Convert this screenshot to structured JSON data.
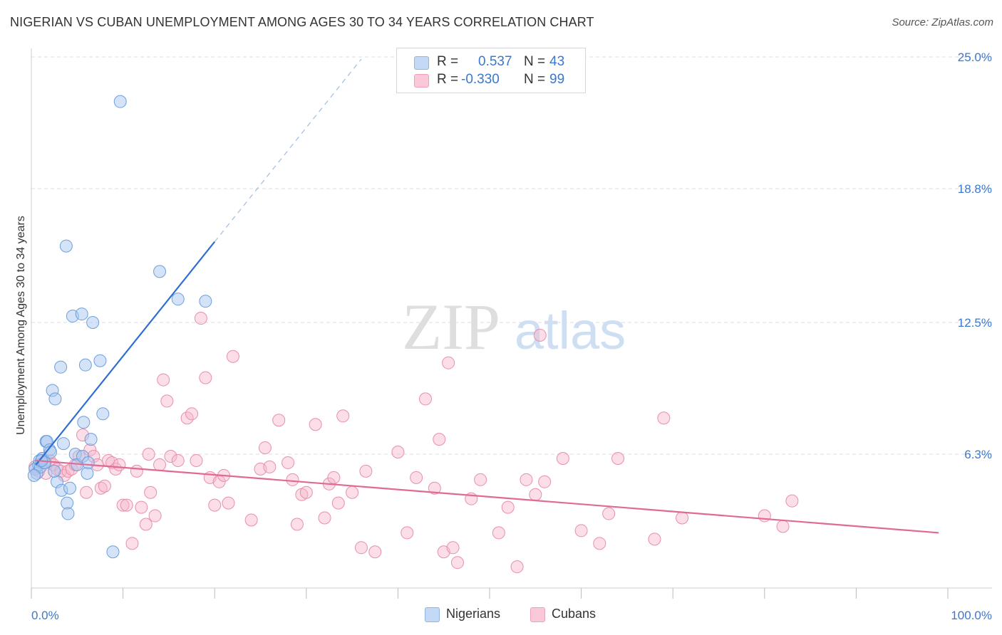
{
  "header": {
    "title": "NIGERIAN VS CUBAN UNEMPLOYMENT AMONG AGES 30 TO 34 YEARS CORRELATION CHART",
    "source": "Source: ZipAtlas.com"
  },
  "watermark": {
    "zip": "ZIP",
    "atlas": "atlas"
  },
  "legend": {
    "rows": [
      {
        "r_label": "R =",
        "r_value": "0.537",
        "n_label": "N =",
        "n_value": "43",
        "color": "#a9c8f0"
      },
      {
        "r_label": "R =",
        "r_value": "-0.330",
        "n_label": "N =",
        "n_value": "99",
        "color": "#f6b6ca"
      }
    ]
  },
  "bottom_legend": {
    "nigerians": "Nigerians",
    "cubans": "Cubans"
  },
  "colors": {
    "nigerian_fill": "#a9c8f0",
    "nigerian_stroke": "#6d9fdc",
    "nigerian_line": "#2f6fd0",
    "cuban_fill": "#f6b6ca",
    "cuban_stroke": "#e88fab",
    "cuban_line": "#e06a95",
    "axis_text": "#3a78d0",
    "grid": "#dcdcdc"
  },
  "chart_data": {
    "type": "scatter",
    "title": "NIGERIAN VS CUBAN UNEMPLOYMENT AMONG AGES 30 TO 34 YEARS CORRELATION CHART",
    "xlabel": "",
    "ylabel": "Unemployment Among Ages 30 to 34 years",
    "xlim": [
      0,
      100
    ],
    "ylim": [
      0,
      25.0
    ],
    "x_tick_labels": [
      "0.0%",
      "100.0%"
    ],
    "y_ticks": [
      6.3,
      12.5,
      18.8,
      25.0
    ],
    "y_tick_labels": [
      "6.3%",
      "12.5%",
      "18.8%",
      "25.0%"
    ],
    "grid": true,
    "series": [
      {
        "name": "Nigerians",
        "r": 0.537,
        "n": 43,
        "trend": {
          "x0": 0.5,
          "y0": 5.8,
          "x1": 20,
          "y1": 16.3,
          "dashed_to_x": 36,
          "dashed_to_y": 24.9
        },
        "points": [
          [
            0.4,
            5.6
          ],
          [
            0.6,
            5.4
          ],
          [
            0.8,
            5.8
          ],
          [
            0.9,
            6.0
          ],
          [
            1.0,
            5.7
          ],
          [
            1.2,
            6.1
          ],
          [
            1.4,
            5.9
          ],
          [
            1.5,
            5.9
          ],
          [
            1.6,
            6.9
          ],
          [
            1.7,
            6.9
          ],
          [
            2.0,
            6.5
          ],
          [
            2.1,
            6.4
          ],
          [
            2.3,
            9.3
          ],
          [
            2.6,
            8.9
          ],
          [
            2.8,
            5.0
          ],
          [
            3.2,
            10.4
          ],
          [
            3.3,
            4.6
          ],
          [
            3.5,
            6.8
          ],
          [
            3.8,
            16.1
          ],
          [
            3.9,
            4.0
          ],
          [
            4.0,
            3.5
          ],
          [
            4.2,
            4.7
          ],
          [
            4.5,
            12.8
          ],
          [
            4.8,
            6.3
          ],
          [
            5.0,
            5.8
          ],
          [
            5.5,
            12.9
          ],
          [
            5.6,
            6.2
          ],
          [
            5.7,
            7.8
          ],
          [
            5.9,
            10.5
          ],
          [
            6.1,
            5.4
          ],
          [
            6.2,
            5.9
          ],
          [
            6.5,
            7.0
          ],
          [
            6.7,
            12.5
          ],
          [
            7.5,
            10.7
          ],
          [
            7.8,
            8.2
          ],
          [
            8.9,
            1.7
          ],
          [
            9.7,
            22.9
          ],
          [
            14.0,
            14.9
          ],
          [
            16.0,
            13.6
          ],
          [
            19.0,
            13.5
          ],
          [
            0.3,
            5.3
          ],
          [
            1.1,
            6.0
          ],
          [
            2.5,
            5.5
          ]
        ]
      },
      {
        "name": "Cubans",
        "r": -0.33,
        "n": 99,
        "trend": {
          "x0": 0.5,
          "y0": 6.0,
          "x1": 99,
          "y1": 2.6
        },
        "points": [
          [
            0.4,
            5.7
          ],
          [
            0.8,
            5.5
          ],
          [
            1.2,
            6.1
          ],
          [
            1.6,
            5.4
          ],
          [
            2.0,
            6.0
          ],
          [
            2.4,
            5.8
          ],
          [
            2.8,
            5.6
          ],
          [
            3.2,
            5.5
          ],
          [
            3.6,
            5.3
          ],
          [
            4.0,
            5.5
          ],
          [
            4.4,
            5.6
          ],
          [
            4.8,
            5.8
          ],
          [
            5.2,
            6.2
          ],
          [
            5.6,
            7.2
          ],
          [
            6.0,
            4.5
          ],
          [
            6.4,
            6.5
          ],
          [
            6.8,
            6.2
          ],
          [
            7.2,
            5.8
          ],
          [
            7.6,
            4.7
          ],
          [
            8.0,
            4.8
          ],
          [
            8.4,
            6.0
          ],
          [
            8.8,
            5.9
          ],
          [
            9.2,
            5.6
          ],
          [
            9.6,
            5.8
          ],
          [
            10.0,
            3.9
          ],
          [
            10.4,
            3.9
          ],
          [
            11.0,
            2.1
          ],
          [
            11.5,
            5.5
          ],
          [
            12.0,
            3.8
          ],
          [
            12.5,
            3.0
          ],
          [
            12.8,
            6.3
          ],
          [
            13.0,
            4.5
          ],
          [
            13.5,
            3.4
          ],
          [
            14.0,
            5.8
          ],
          [
            14.4,
            9.8
          ],
          [
            14.8,
            8.8
          ],
          [
            15.2,
            6.2
          ],
          [
            16.0,
            6.0
          ],
          [
            17.0,
            8.0
          ],
          [
            17.5,
            8.2
          ],
          [
            18.0,
            6.0
          ],
          [
            18.5,
            12.7
          ],
          [
            19.0,
            9.9
          ],
          [
            19.5,
            5.2
          ],
          [
            20.0,
            3.9
          ],
          [
            20.5,
            5.0
          ],
          [
            21.0,
            5.3
          ],
          [
            21.5,
            4.0
          ],
          [
            22.0,
            10.9
          ],
          [
            24.0,
            3.2
          ],
          [
            25.0,
            5.6
          ],
          [
            25.5,
            6.6
          ],
          [
            26.0,
            5.7
          ],
          [
            27.0,
            7.9
          ],
          [
            28.0,
            5.9
          ],
          [
            28.5,
            5.1
          ],
          [
            29.0,
            3.0
          ],
          [
            29.5,
            4.4
          ],
          [
            30.0,
            4.5
          ],
          [
            31.0,
            7.7
          ],
          [
            32.0,
            3.3
          ],
          [
            32.5,
            4.9
          ],
          [
            33.0,
            5.2
          ],
          [
            33.5,
            4.0
          ],
          [
            34.0,
            8.1
          ],
          [
            35.0,
            4.5
          ],
          [
            36.0,
            1.9
          ],
          [
            36.5,
            5.5
          ],
          [
            37.5,
            1.7
          ],
          [
            40.0,
            6.4
          ],
          [
            41.0,
            2.6
          ],
          [
            42.0,
            5.2
          ],
          [
            43.0,
            8.9
          ],
          [
            44.0,
            4.7
          ],
          [
            44.5,
            7.0
          ],
          [
            45.0,
            1.7
          ],
          [
            45.5,
            10.6
          ],
          [
            46.0,
            1.9
          ],
          [
            46.5,
            1.2
          ],
          [
            48.0,
            4.2
          ],
          [
            49.0,
            5.1
          ],
          [
            51.0,
            2.6
          ],
          [
            52.0,
            3.8
          ],
          [
            53.0,
            1.0
          ],
          [
            54.0,
            5.1
          ],
          [
            55.0,
            4.4
          ],
          [
            55.5,
            11.9
          ],
          [
            56.0,
            5.0
          ],
          [
            58.0,
            6.1
          ],
          [
            60.0,
            2.7
          ],
          [
            62.0,
            2.1
          ],
          [
            63.0,
            3.5
          ],
          [
            64.0,
            6.1
          ],
          [
            68.0,
            2.3
          ],
          [
            69.0,
            8.0
          ],
          [
            71.0,
            3.3
          ],
          [
            80.0,
            3.4
          ],
          [
            82.0,
            2.9
          ],
          [
            83.0,
            4.1
          ]
        ]
      }
    ]
  }
}
